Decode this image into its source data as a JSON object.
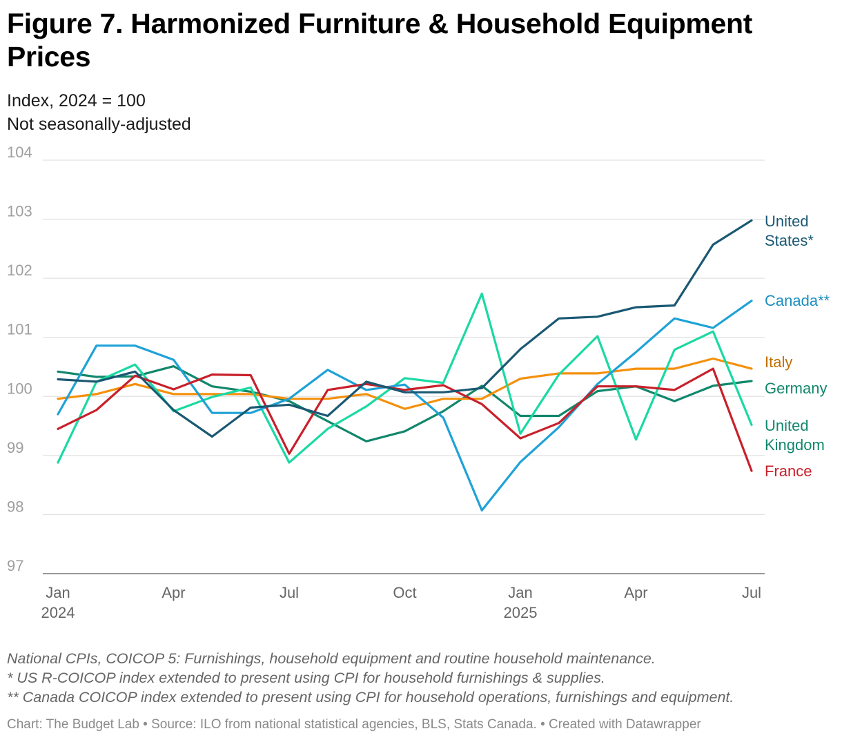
{
  "header": {
    "title": "Figure 7. Harmonized Furniture & Household Equipment Prices",
    "subtitle_line1": "Index, 2024 = 100",
    "subtitle_line2": "Not seasonally-adjusted"
  },
  "notes": {
    "line1": "National CPIs, COICOP 5: Furnishings, household equipment and routine household maintenance.",
    "line2": "* US R-COICOP index extended to present using CPI for household furnishings & supplies.",
    "line3": "** Canada COICOP index extended to present using CPI for household operations, furnishings and equipment."
  },
  "credit": "Chart: The Budget Lab • Source: ILO from national statistical agencies, BLS, Stats Canada. • Created with Datawrapper",
  "chart_data": {
    "type": "line",
    "x": [
      "2024-01",
      "2024-02",
      "2024-03",
      "2024-04",
      "2024-05",
      "2024-06",
      "2024-07",
      "2024-08",
      "2024-09",
      "2024-10",
      "2024-11",
      "2024-12",
      "2025-01",
      "2025-02",
      "2025-03",
      "2025-04",
      "2025-05",
      "2025-06",
      "2025-07"
    ],
    "x_ticks": [
      {
        "index": 0,
        "label": "Jan",
        "year": "2024"
      },
      {
        "index": 3,
        "label": "Apr",
        "year": ""
      },
      {
        "index": 6,
        "label": "Jul",
        "year": ""
      },
      {
        "index": 9,
        "label": "Oct",
        "year": ""
      },
      {
        "index": 12,
        "label": "Jan",
        "year": "2025"
      },
      {
        "index": 15,
        "label": "Apr",
        "year": ""
      },
      {
        "index": 18,
        "label": "Jul",
        "year": ""
      }
    ],
    "ylim": [
      97,
      104
    ],
    "yticks": [
      97,
      98,
      99,
      100,
      101,
      102,
      103,
      104
    ],
    "grid": true,
    "legend": "direct labels at right end of lines",
    "series": [
      {
        "name": "Germany",
        "label_lines": [
          "Germany"
        ],
        "color": "#11876c",
        "label_color": "#11876c",
        "values": [
          100.42,
          100.33,
          100.34,
          100.51,
          100.17,
          100.08,
          99.92,
          99.58,
          99.24,
          99.41,
          99.75,
          100.18,
          99.67,
          99.67,
          100.09,
          100.17,
          99.92,
          100.18,
          100.26
        ]
      },
      {
        "name": "Italy",
        "label_lines": [
          "Italy"
        ],
        "color": "#f4900c",
        "label_color": "#c26e00",
        "values": [
          99.96,
          100.04,
          100.21,
          100.04,
          100.04,
          100.04,
          99.96,
          99.96,
          100.04,
          99.79,
          99.96,
          99.96,
          100.3,
          100.39,
          100.39,
          100.47,
          100.47,
          100.64,
          100.47
        ]
      },
      {
        "name": "United Kingdom",
        "label_lines": [
          "United",
          "Kingdom"
        ],
        "color": "#1ad9a3",
        "label_color": "#11876c",
        "values": [
          98.88,
          100.25,
          100.54,
          99.75,
          99.99,
          100.15,
          98.88,
          99.45,
          99.83,
          100.31,
          100.23,
          101.74,
          99.37,
          100.37,
          101.02,
          99.27,
          100.79,
          101.1,
          99.52
        ]
      },
      {
        "name": "Canada**",
        "label_lines": [
          "Canada**"
        ],
        "color": "#1fa2d6",
        "label_color": "#1a8ec0",
        "values": [
          99.7,
          100.86,
          100.86,
          100.62,
          99.72,
          99.72,
          99.96,
          100.45,
          100.11,
          100.2,
          99.64,
          98.07,
          98.89,
          99.48,
          100.21,
          100.75,
          101.32,
          101.16,
          101.62
        ]
      },
      {
        "name": "France",
        "label_lines": [
          "France"
        ],
        "color": "#c8202a",
        "label_color": "#c8202a",
        "values": [
          99.45,
          99.77,
          100.35,
          100.12,
          100.37,
          100.36,
          99.03,
          100.11,
          100.21,
          100.11,
          100.19,
          99.87,
          99.29,
          99.55,
          100.17,
          100.17,
          100.11,
          100.47,
          98.74
        ]
      },
      {
        "name": "United States*",
        "label_lines": [
          "United",
          "States*"
        ],
        "color": "#1a5873",
        "label_color": "#1a5873",
        "values": [
          100.29,
          100.25,
          100.42,
          99.77,
          99.32,
          99.81,
          99.86,
          99.67,
          100.25,
          100.07,
          100.07,
          100.14,
          100.8,
          101.32,
          101.35,
          101.51,
          101.54,
          102.57,
          102.98
        ]
      }
    ]
  }
}
